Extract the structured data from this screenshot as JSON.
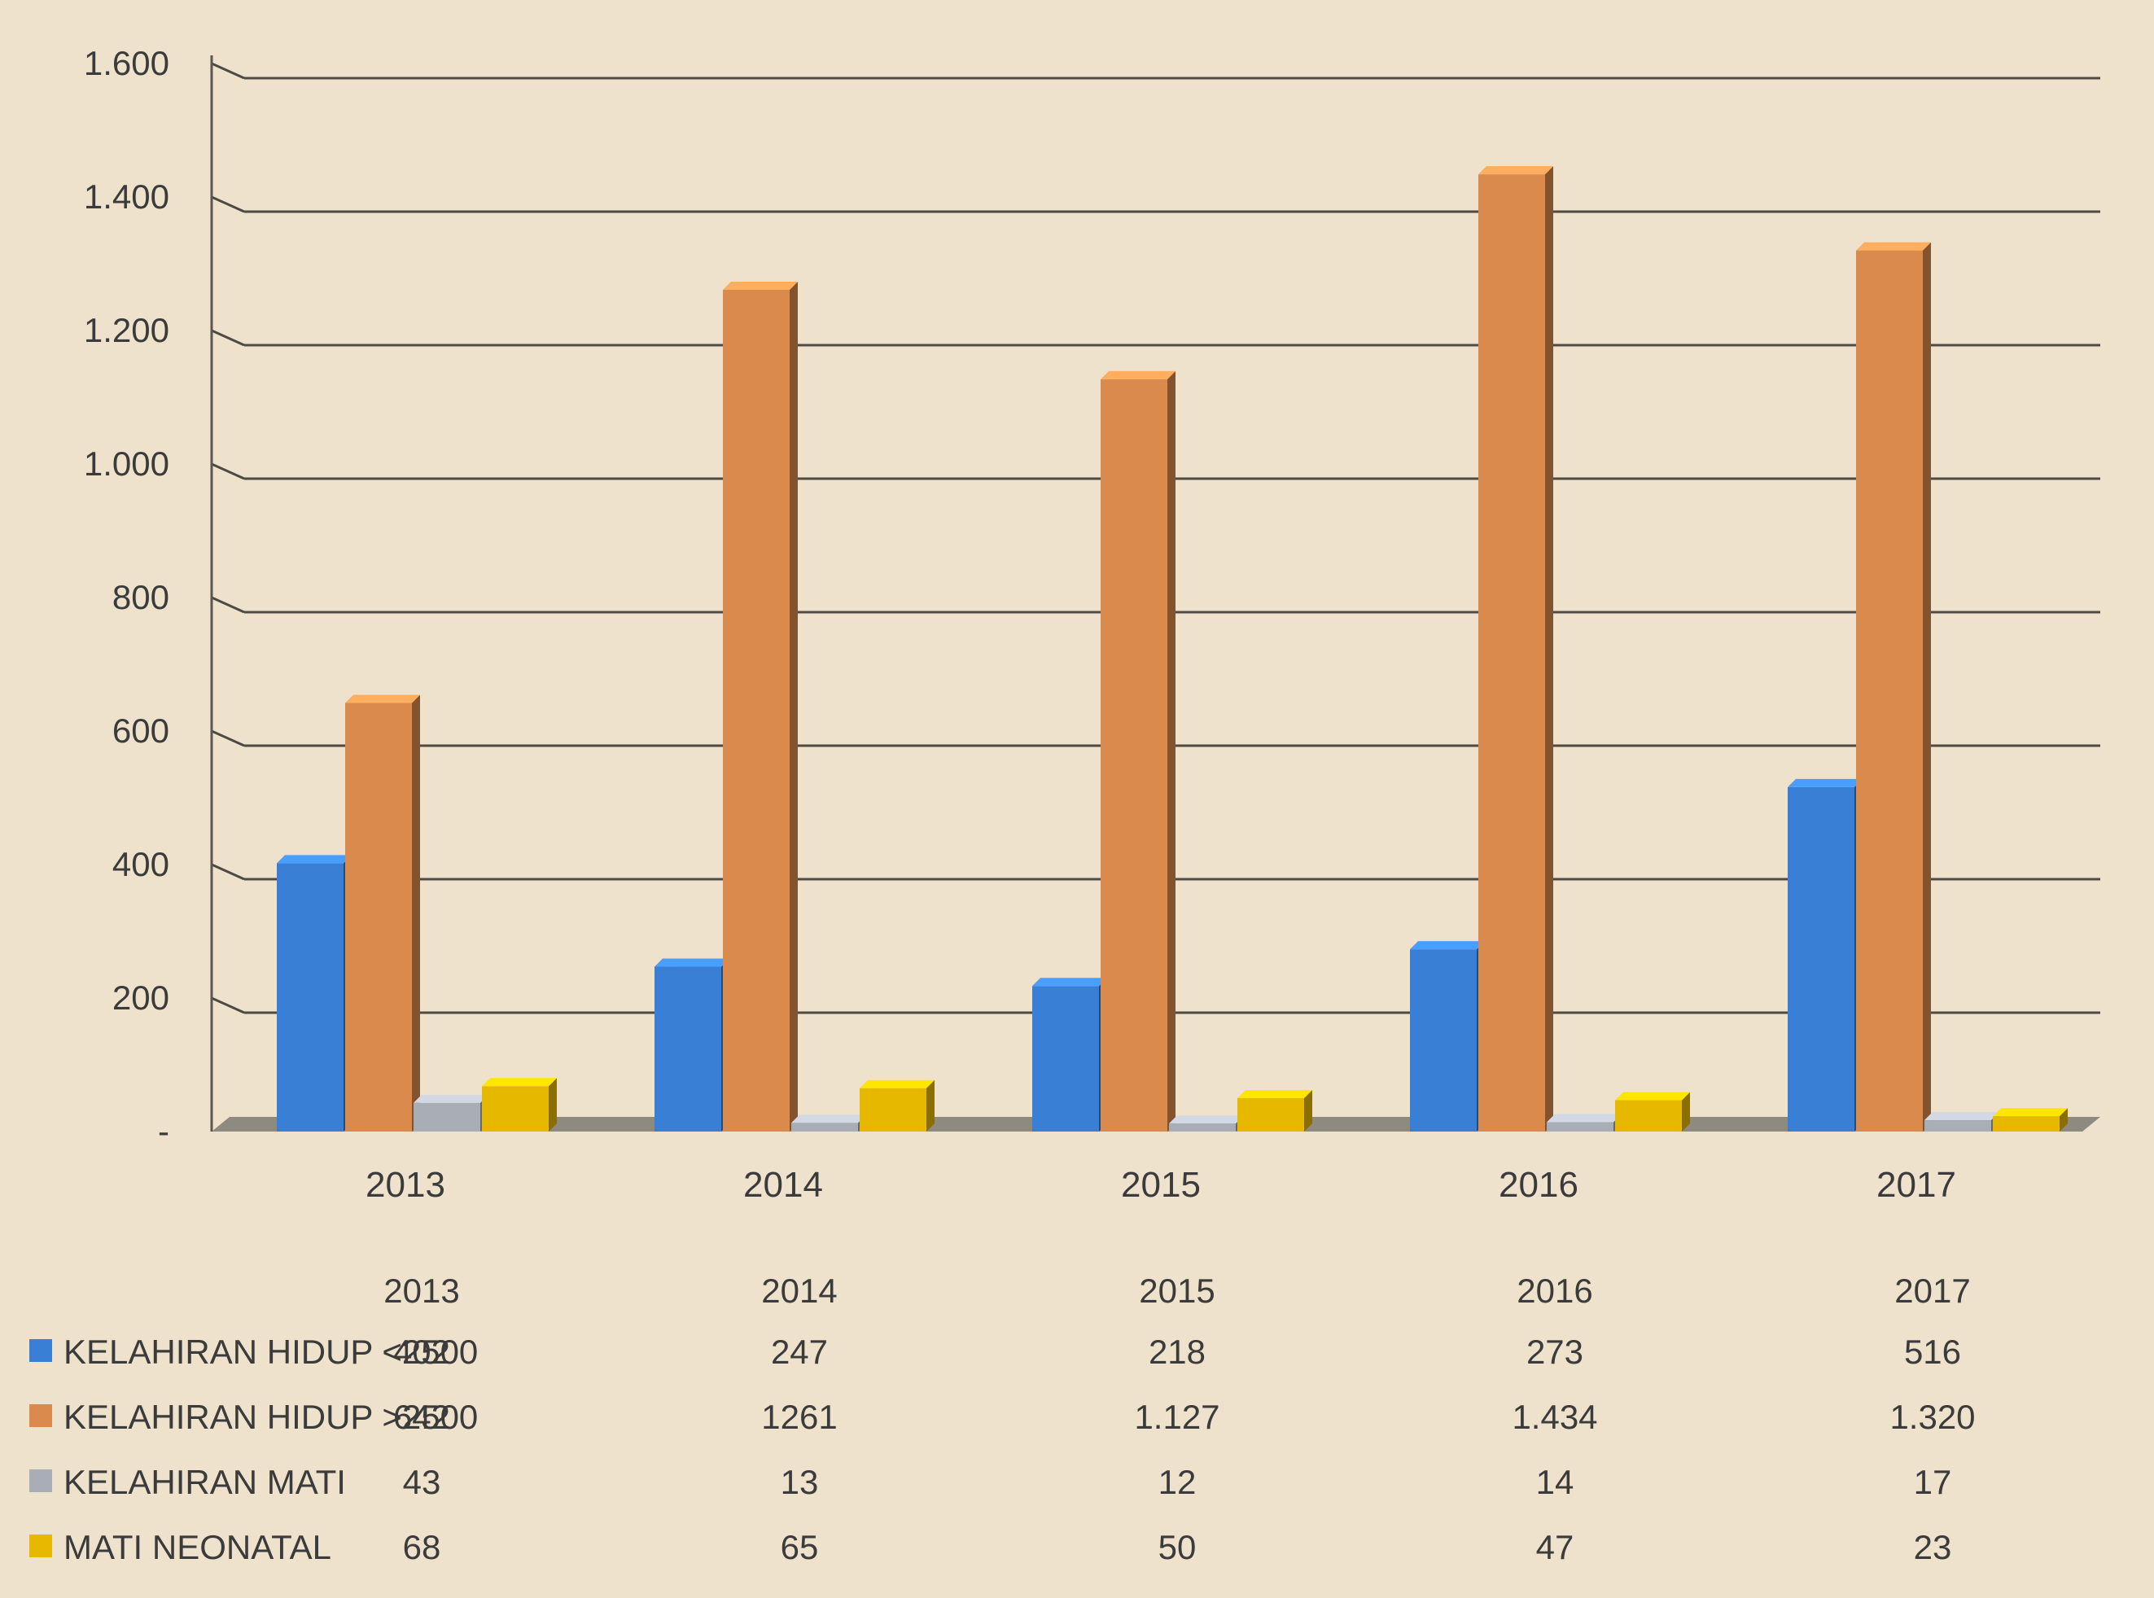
{
  "chart_data": {
    "type": "bar",
    "title": "",
    "xlabel": "",
    "ylabel": "",
    "categories": [
      "2013",
      "2014",
      "2015",
      "2016",
      "2017"
    ],
    "ylim": [
      0,
      1600
    ],
    "yticks": [
      0,
      200,
      400,
      600,
      800,
      1000,
      1200,
      1400,
      1600
    ],
    "ytick_labels": [
      "-",
      "200",
      "400",
      "600",
      "800",
      "1.000",
      "1.200",
      "1.400",
      "1.600"
    ],
    "grid": true,
    "legend_placement": "bottom-left, in data table",
    "series": [
      {
        "name": "KELAHIRAN HIDUP <2500",
        "color": "#3a7fd6",
        "values": [
          402,
          247,
          218,
          273,
          516
        ],
        "labels": [
          "402",
          "247",
          "218",
          "273",
          "516"
        ]
      },
      {
        "name": "KELAHIRAN HIDUP >2500",
        "color": "#d98a4c",
        "values": [
          642,
          1261,
          1127,
          1434,
          1320
        ],
        "labels": [
          "642",
          "1261",
          "1.127",
          "1.434",
          "1.320"
        ]
      },
      {
        "name": "KELAHIRAN MATI",
        "color": "#a8adb6",
        "values": [
          43,
          13,
          12,
          14,
          17
        ],
        "labels": [
          "43",
          "13",
          "12",
          "14",
          "17"
        ]
      },
      {
        "name": "MATI NEONATAL",
        "color": "#e6b800",
        "values": [
          68,
          65,
          50,
          47,
          23
        ],
        "labels": [
          "68",
          "65",
          "50",
          "47",
          "23"
        ]
      }
    ]
  }
}
